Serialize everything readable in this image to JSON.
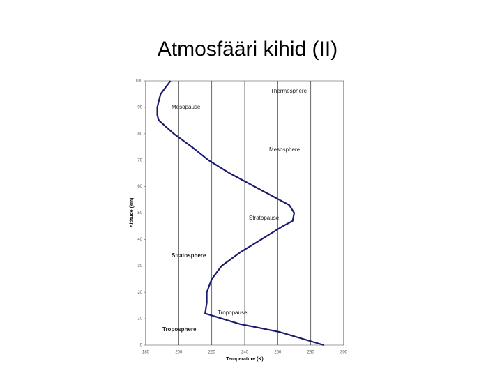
{
  "chart_data": {
    "type": "line",
    "title": "Atmosfääri kihid (II)",
    "x_label": "Temperature (K)",
    "y_label": "Altitude (km)",
    "x": [
      288,
      261,
      237,
      216,
      217,
      217,
      220,
      226,
      237,
      250,
      263,
      269,
      270,
      267,
      261,
      246,
      231,
      218,
      208,
      197,
      188,
      187,
      187,
      189,
      195
    ],
    "series": [
      {
        "name": "Temperature",
        "color": "#1b1b6b",
        "values": [
          0,
          5,
          8,
          12,
          16,
          20,
          25,
          30,
          35,
          40,
          45,
          47,
          50,
          53,
          55,
          60,
          65,
          70,
          75,
          80,
          85,
          87,
          90,
          95,
          100
        ]
      }
    ],
    "xlim": [
      180,
      300
    ],
    "xticks": [
      180,
      200,
      220,
      240,
      260,
      280,
      300
    ],
    "ylim": [
      0,
      100
    ],
    "yticks": [
      0,
      10,
      20,
      30,
      40,
      50,
      60,
      70,
      80,
      90,
      100
    ],
    "grid": true,
    "annotations": [
      "Thermosphere",
      "Mesopause",
      "Mesosphere",
      "Stratopause",
      "Stratosphere",
      "Tropopause",
      "Troposphere"
    ]
  }
}
